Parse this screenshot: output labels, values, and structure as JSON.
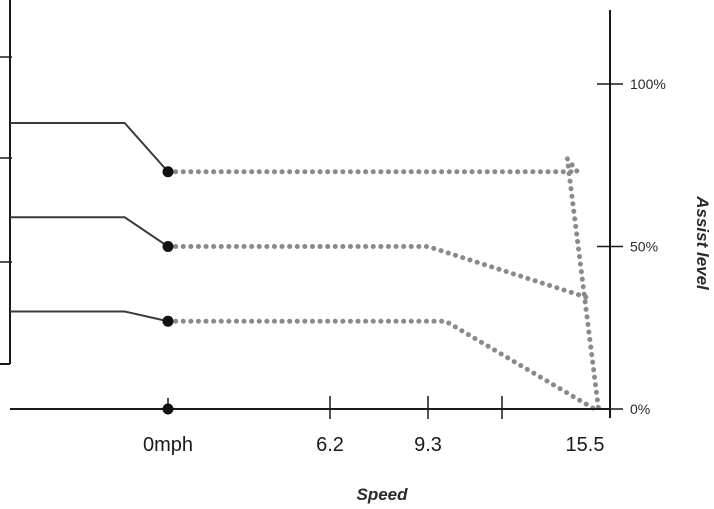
{
  "chart_data": {
    "type": "line",
    "title": "",
    "xlabel": "Speed",
    "ylabel": "Assist level",
    "x_tick_labels": [
      "0mph",
      "6.2",
      "9.3",
      "15.5"
    ],
    "y_tick_labels": [
      "0%",
      "50%",
      "100%"
    ],
    "xlim": [
      -6.2,
      17.2
    ],
    "ylim": [
      0,
      115
    ],
    "grid": false,
    "legend": "none",
    "colors": {
      "solid": "#3a3a3a",
      "dotted": "#8a8a8a",
      "axis": "#1a1a1a"
    },
    "series": [
      {
        "solid": [
          [
            -6.2,
            88
          ],
          [
            -1.7,
            88
          ],
          [
            0,
            73
          ]
        ],
        "dotted": [
          [
            0,
            73
          ],
          [
            15.2,
            73
          ],
          [
            14.8,
            77
          ],
          [
            16.5,
            0
          ]
        ]
      },
      {
        "solid": [
          [
            -6.2,
            59
          ],
          [
            -1.7,
            59
          ],
          [
            0,
            50
          ]
        ],
        "dotted": [
          [
            0,
            50
          ],
          [
            9.3,
            50
          ],
          [
            15.9,
            34
          ]
        ]
      },
      {
        "solid": [
          [
            -6.2,
            30
          ],
          [
            -1.7,
            30
          ],
          [
            0,
            27
          ]
        ],
        "dotted": [
          [
            0,
            27
          ],
          [
            10,
            27
          ],
          [
            16.2,
            0
          ]
        ]
      }
    ]
  }
}
